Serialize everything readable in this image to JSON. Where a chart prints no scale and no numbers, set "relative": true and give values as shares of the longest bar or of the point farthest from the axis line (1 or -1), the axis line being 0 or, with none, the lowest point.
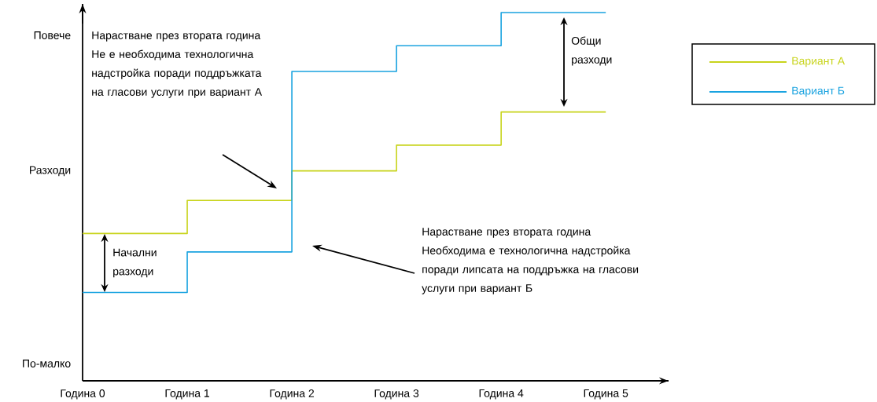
{
  "chart_data": {
    "type": "step",
    "relative": true,
    "ylabel": "Разходи",
    "categories": [
      "Година 0",
      "Година 1",
      "Година 2",
      "Година 3",
      "Година 4",
      "Година 5"
    ],
    "series": [
      {
        "name": "Вариант А",
        "color": "#c8d41c",
        "values": [
          0.4,
          0.49,
          0.57,
          0.64,
          0.73,
          0.73
        ]
      },
      {
        "name": "Вариант Б",
        "color": "#1aa3e0",
        "values": [
          0.24,
          0.35,
          0.84,
          0.91,
          1,
          1
        ]
      }
    ],
    "legend": "top right",
    "annotations": [
      "Повече",
      "По-малко",
      "Нарастване през втората година",
      "Не е необходима технологична надстройка поради поддръжката на гласови услуги при вариант А",
      "Нарастване през втората година",
      "Необходима е технологична надстройка поради липсата на поддръжка на гласови услуги при вариант Б",
      "Общи разходи",
      "Начални разходи"
    ]
  }
}
